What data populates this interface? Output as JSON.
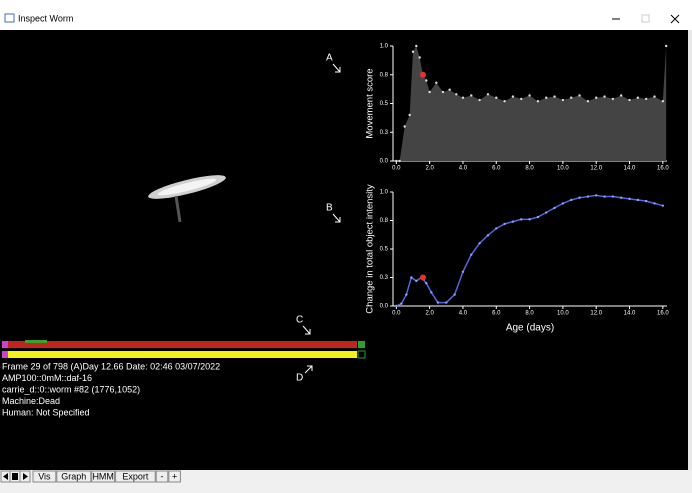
{
  "window": {
    "title": "Inspect Worm"
  },
  "annotations": [
    "A",
    "B",
    "C",
    "D"
  ],
  "charts": [
    {
      "type": "area-scatter",
      "ylabel": "Movement score",
      "xlim": [
        -0.2,
        16.25
      ],
      "ylim": [
        0,
        1
      ],
      "xticks": [
        {
          "value": 0,
          "label": "0.0"
        },
        {
          "value": 2,
          "label": "2.0"
        },
        {
          "value": 4,
          "label": "4.0"
        },
        {
          "value": 6,
          "label": "6.0"
        },
        {
          "value": 8,
          "label": "8.0"
        },
        {
          "value": 10,
          "label": "10.0"
        },
        {
          "value": 12,
          "label": "12.0"
        },
        {
          "value": 14,
          "label": "14.0"
        },
        {
          "value": 16,
          "label": "16.0"
        }
      ],
      "yticks": [
        {
          "value": 0,
          "label": "0.0"
        },
        {
          "value": 0.25,
          "label": "0.3"
        },
        {
          "value": 0.5,
          "label": "0.5"
        },
        {
          "value": 0.75,
          "label": "0.8"
        },
        {
          "value": 1,
          "label": "1.0"
        }
      ],
      "x": [
        0,
        0.2,
        0.5,
        0.8,
        1.0,
        1.2,
        1.4,
        1.6,
        1.8,
        2.0,
        2.4,
        2.8,
        3.2,
        3.6,
        4.0,
        4.5,
        5.0,
        5.5,
        6.0,
        6.5,
        7.0,
        7.5,
        8.0,
        8.5,
        9.0,
        9.5,
        10.0,
        10.5,
        11.0,
        11.5,
        12.0,
        12.5,
        13.0,
        13.5,
        14.0,
        14.5,
        15.0,
        15.5,
        16.0,
        16.2
      ],
      "values": [
        0,
        0,
        0.3,
        0.4,
        0.95,
        1.0,
        0.9,
        0.75,
        0.7,
        0.6,
        0.68,
        0.6,
        0.62,
        0.58,
        0.55,
        0.57,
        0.53,
        0.58,
        0.55,
        0.52,
        0.56,
        0.54,
        0.57,
        0.52,
        0.55,
        0.56,
        0.53,
        0.55,
        0.57,
        0.52,
        0.55,
        0.56,
        0.54,
        0.57,
        0.53,
        0.55,
        0.54,
        0.56,
        0.52,
        1.0
      ],
      "area_color": "#444444",
      "point_color": "#dddddd",
      "highlight": {
        "x": 1.6,
        "y": 0.75,
        "color": "#e8312a"
      }
    },
    {
      "type": "line",
      "ylabel": "Change in total object intensity",
      "xlabel": "Age (days)",
      "xlim": [
        -0.2,
        16.25
      ],
      "ylim": [
        0,
        1
      ],
      "xticks": [
        {
          "value": 0,
          "label": "0.0"
        },
        {
          "value": 2,
          "label": "2.0"
        },
        {
          "value": 4,
          "label": "4.0"
        },
        {
          "value": 6,
          "label": "6.0"
        },
        {
          "value": 8,
          "label": "8.0"
        },
        {
          "value": 10,
          "label": "10.0"
        },
        {
          "value": 12,
          "label": "12.0"
        },
        {
          "value": 14,
          "label": "14.0"
        },
        {
          "value": 16,
          "label": "16.0"
        }
      ],
      "yticks": [
        {
          "value": 0,
          "label": "0.0"
        },
        {
          "value": 0.25,
          "label": "0.3"
        },
        {
          "value": 0.5,
          "label": "0.5"
        },
        {
          "value": 0.75,
          "label": "0.8"
        },
        {
          "value": 1,
          "label": "1.0"
        }
      ],
      "x": [
        0,
        0.3,
        0.6,
        0.9,
        1.2,
        1.5,
        1.8,
        2.1,
        2.5,
        3.0,
        3.5,
        4.0,
        4.5,
        5.0,
        5.5,
        6.0,
        6.5,
        7.0,
        7.5,
        8.0,
        8.5,
        9.0,
        9.5,
        10.0,
        10.5,
        11.0,
        11.5,
        12.0,
        12.5,
        13.0,
        13.5,
        14.0,
        14.5,
        15.0,
        15.5,
        16.0
      ],
      "values": [
        0,
        0.02,
        0.1,
        0.25,
        0.22,
        0.25,
        0.2,
        0.12,
        0.03,
        0.03,
        0.1,
        0.3,
        0.45,
        0.55,
        0.62,
        0.68,
        0.72,
        0.74,
        0.76,
        0.76,
        0.78,
        0.82,
        0.86,
        0.9,
        0.93,
        0.95,
        0.96,
        0.97,
        0.96,
        0.96,
        0.95,
        0.94,
        0.93,
        0.92,
        0.9,
        0.88
      ],
      "line_color": "#5566dd",
      "highlight": {
        "x": 1.6,
        "y": 0.25,
        "color": "#e8312a"
      }
    }
  ],
  "info": [
    "Frame 29 of 798 (A)Day 12.66 Date: 02:46 03/07/2022",
    "AMP100::0mM::daf-16",
    "carrie_d::0::worm #82 (1776,1052)",
    "Machine:Dead",
    "Human: Not Specified"
  ],
  "toolbar": [
    "Vis",
    "Graph",
    "HMM",
    "Export",
    "-",
    "+"
  ]
}
